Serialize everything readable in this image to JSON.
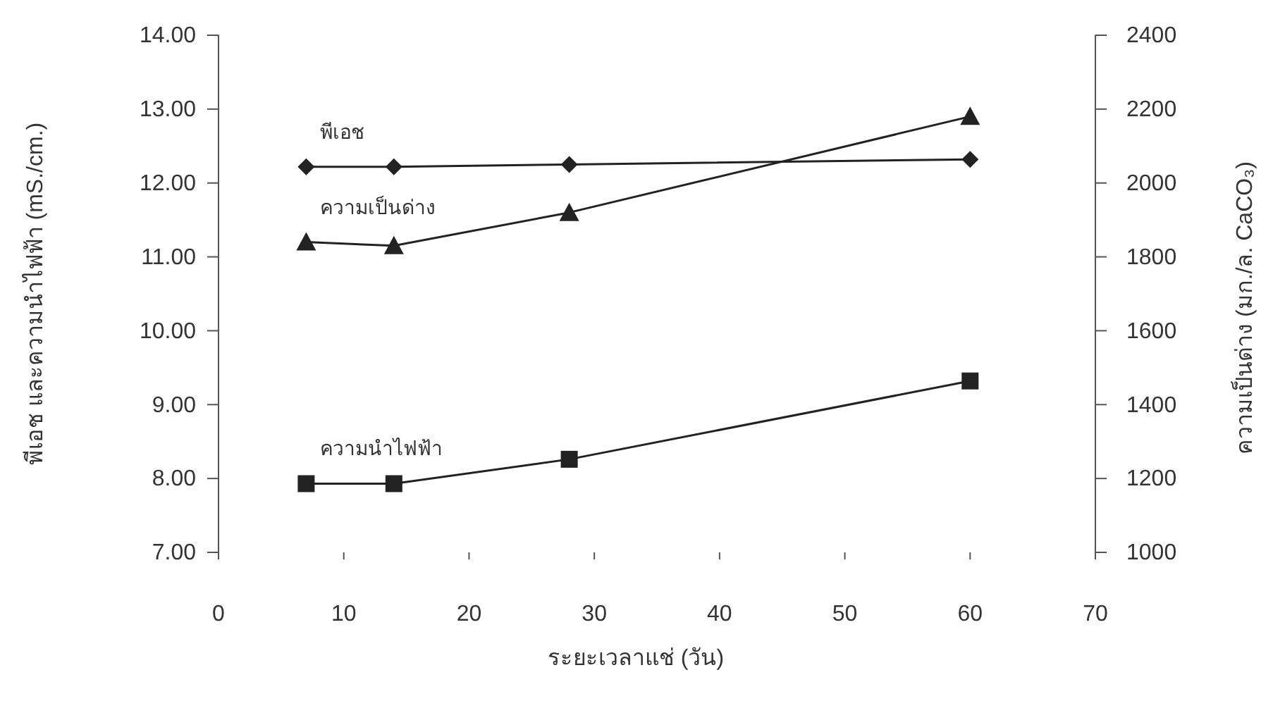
{
  "chart_data": {
    "type": "line",
    "xlabel": "ระยะเวลาแช่ (วัน)",
    "ylabel": "พีเอช และความนำไฟฟ้า (mS./cm.)",
    "y2label": "ความเป็นด่าง (มก./ล. CaCO₃)",
    "x": [
      7,
      14,
      28,
      60
    ],
    "xlim": [
      0,
      70
    ],
    "xticks": [
      0,
      10,
      20,
      30,
      40,
      50,
      60,
      70
    ],
    "ylim": [
      7,
      14
    ],
    "yticks": [
      {
        "value": 7,
        "label": "7.00"
      },
      {
        "value": 8,
        "label": "8.00"
      },
      {
        "value": 9,
        "label": "9.00"
      },
      {
        "value": 10,
        "label": "10.00"
      },
      {
        "value": 11,
        "label": "11.00"
      },
      {
        "value": 12,
        "label": "12.00"
      },
      {
        "value": 13,
        "label": "13.00"
      },
      {
        "value": 14,
        "label": "14.00"
      }
    ],
    "y2lim": [
      1000,
      2400
    ],
    "y2ticks": [
      1000,
      1200,
      1400,
      1600,
      1800,
      2000,
      2200,
      2400
    ],
    "grid": false,
    "series": [
      {
        "name": "พีเอช",
        "color": "#222222",
        "marker": "diamond",
        "values": [
          12.22,
          12.22,
          12.25,
          12.32
        ]
      },
      {
        "name": "ความเป็นด่าง",
        "color": "#222222",
        "marker": "triangle",
        "axis": "y2",
        "values": [
          1840,
          1830,
          1920,
          2180
        ]
      },
      {
        "name": "ความนำไฟฟ้า",
        "color": "#222222",
        "marker": "square",
        "values": [
          7.93,
          7.93,
          8.26,
          9.32
        ]
      }
    ]
  }
}
